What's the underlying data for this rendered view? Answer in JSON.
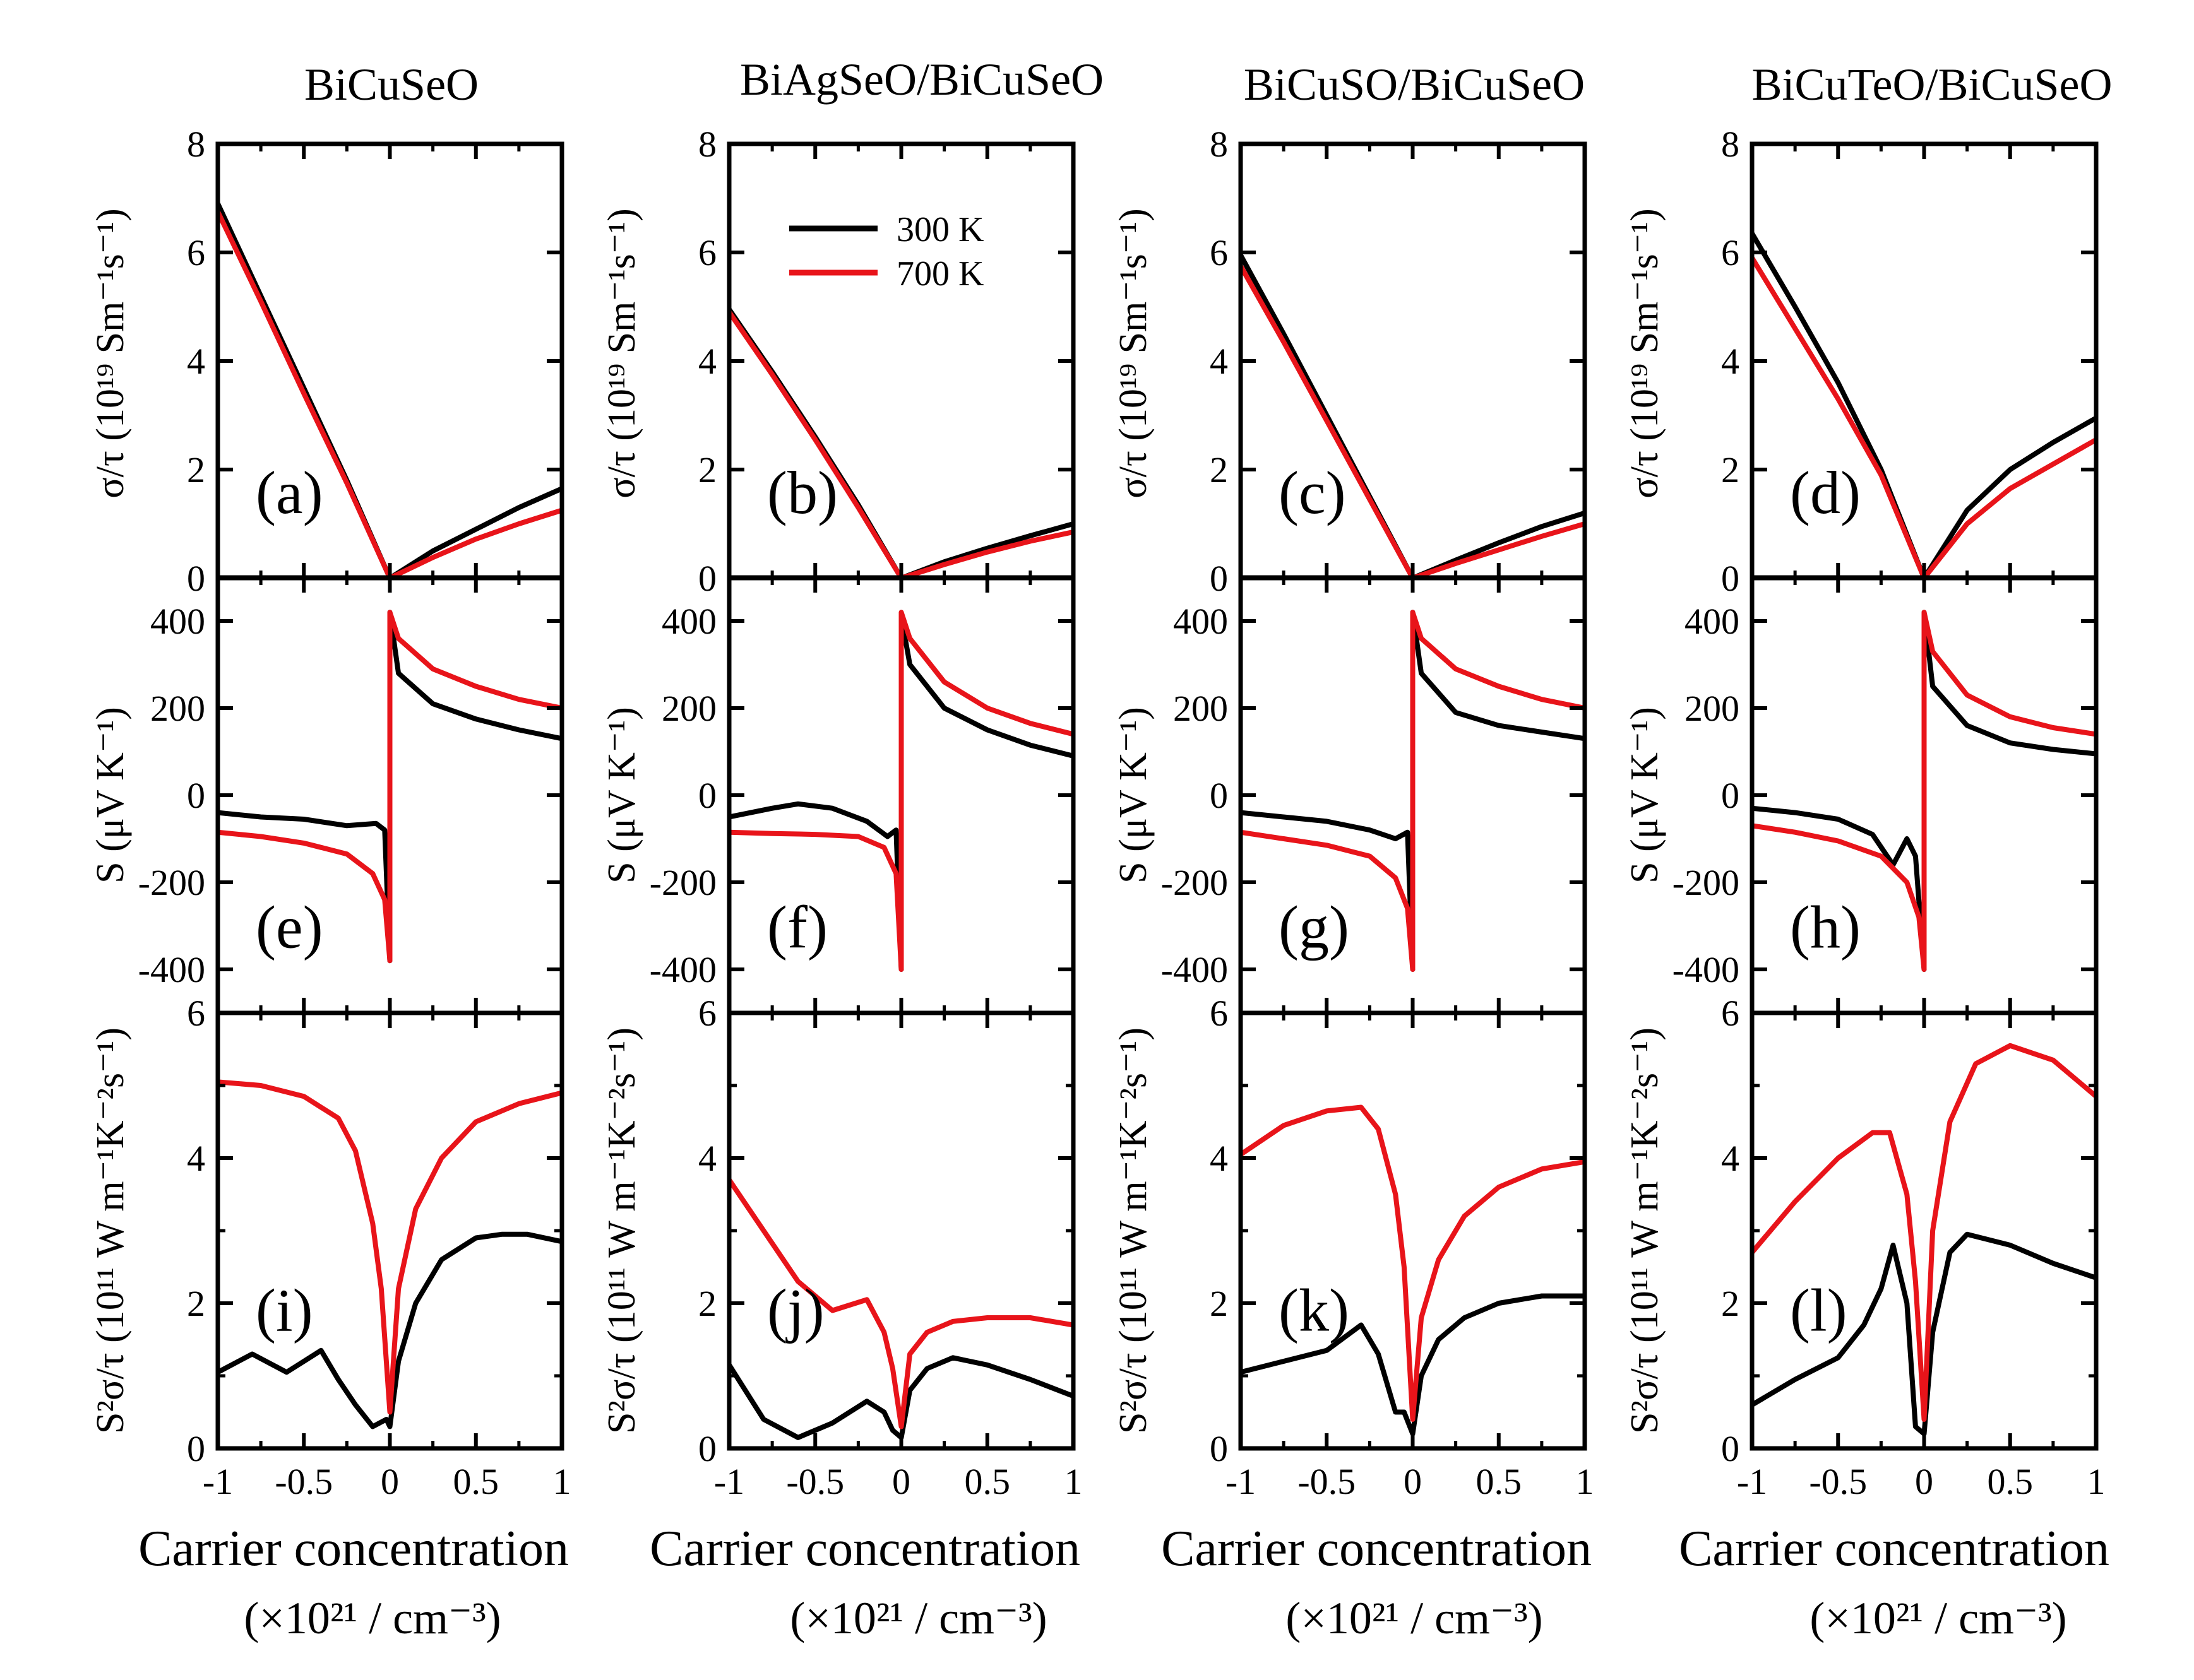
{
  "figure": {
    "columns": [
      {
        "title": "BiCuSeO",
        "letters": [
          "(a)",
          "(e)",
          "(i)"
        ]
      },
      {
        "title": "BiAgSeO/BiCuSeO",
        "letters": [
          "(b)",
          "(f)",
          "(j)"
        ]
      },
      {
        "title": "BiCuSO/BiCuSeO",
        "letters": [
          "(c)",
          "(g)",
          "(k)"
        ]
      },
      {
        "title": "BiCuTeO/BiCuSeO",
        "letters": [
          "(d)",
          "(h)",
          "(l)"
        ]
      }
    ],
    "x_tick_labels": [
      "-1",
      "-0.5",
      "0",
      "0.5",
      "1"
    ],
    "xlabel": "Carrier concentration",
    "xunit": "(×10²¹ / cm⁻³)",
    "ylabels": {
      "sigma": "σ/τ (10¹⁹ Sm⁻¹s⁻¹)",
      "seebeck": "S (μV K⁻¹)",
      "power": "S²σ/τ (10¹¹ W m⁻¹K⁻²s⁻¹)"
    },
    "legend": [
      {
        "label": "300 K",
        "color": "#000000"
      },
      {
        "label": "700 K",
        "color": "#e8141a"
      }
    ]
  },
  "chart_data": {
    "type": "line",
    "x_range": [
      -1,
      1
    ],
    "rows": [
      {
        "quantity": "sigma",
        "ylim": [
          0,
          8
        ],
        "yticks": [
          0,
          2,
          4,
          6,
          8
        ]
      },
      {
        "quantity": "seebeck",
        "ylim": [
          -500,
          500
        ],
        "yticks": [
          -400,
          -200,
          0,
          200,
          400
        ]
      },
      {
        "quantity": "power",
        "ylim": [
          0,
          6
        ],
        "yticks": [
          0,
          2,
          4,
          6
        ]
      }
    ],
    "panels": [
      {
        "row": 0,
        "col": 0,
        "series": [
          {
            "name": "300 K",
            "x": [
              -1,
              -0.75,
              -0.5,
              -0.25,
              0,
              0.25,
              0.5,
              0.75,
              1
            ],
            "y": [
              6.9,
              5.2,
              3.5,
              1.8,
              0,
              0.5,
              0.9,
              1.3,
              1.65
            ]
          },
          {
            "name": "700 K",
            "x": [
              -1,
              -0.75,
              -0.5,
              -0.25,
              0,
              0.25,
              0.5,
              0.75,
              1
            ],
            "y": [
              6.75,
              5.1,
              3.4,
              1.75,
              0,
              0.38,
              0.72,
              1.0,
              1.25
            ]
          }
        ]
      },
      {
        "row": 0,
        "col": 1,
        "series": [
          {
            "name": "300 K",
            "x": [
              -1,
              -0.75,
              -0.5,
              -0.25,
              0,
              0.25,
              0.5,
              0.75,
              1
            ],
            "y": [
              4.95,
              3.8,
              2.6,
              1.35,
              0,
              0.3,
              0.55,
              0.78,
              1.0
            ]
          },
          {
            "name": "700 K",
            "x": [
              -1,
              -0.75,
              -0.5,
              -0.25,
              0,
              0.25,
              0.5,
              0.75,
              1
            ],
            "y": [
              4.9,
              3.75,
              2.55,
              1.3,
              0,
              0.25,
              0.48,
              0.68,
              0.85
            ]
          }
        ]
      },
      {
        "row": 0,
        "col": 2,
        "series": [
          {
            "name": "300 K",
            "x": [
              -1,
              -0.75,
              -0.5,
              -0.25,
              0,
              0.25,
              0.5,
              0.75,
              1
            ],
            "y": [
              5.95,
              4.5,
              3.0,
              1.5,
              0,
              0.33,
              0.65,
              0.95,
              1.2
            ]
          },
          {
            "name": "700 K",
            "x": [
              -1,
              -0.75,
              -0.5,
              -0.25,
              0,
              0.25,
              0.5,
              0.75,
              1
            ],
            "y": [
              5.75,
              4.35,
              2.9,
              1.45,
              0,
              0.27,
              0.52,
              0.77,
              1.0
            ]
          }
        ]
      },
      {
        "row": 0,
        "col": 3,
        "series": [
          {
            "name": "300 K",
            "x": [
              -1,
              -0.75,
              -0.5,
              -0.25,
              0,
              0.25,
              0.5,
              0.75,
              1
            ],
            "y": [
              6.35,
              5.0,
              3.6,
              2.0,
              0,
              1.25,
              2.0,
              2.5,
              2.95
            ]
          },
          {
            "name": "700 K",
            "x": [
              -1,
              -0.75,
              -0.5,
              -0.25,
              0,
              0.25,
              0.5,
              0.75,
              1
            ],
            "y": [
              5.9,
              4.6,
              3.3,
              1.9,
              0,
              1.0,
              1.65,
              2.1,
              2.55
            ]
          }
        ]
      },
      {
        "row": 1,
        "col": 0,
        "series": [
          {
            "name": "300 K",
            "x": [
              -1,
              -0.75,
              -0.5,
              -0.25,
              -0.08,
              -0.03,
              0,
              0,
              0.05,
              0.25,
              0.5,
              0.75,
              1
            ],
            "y": [
              -40,
              -50,
              -55,
              -70,
              -65,
              -80,
              -380,
              420,
              280,
              210,
              175,
              150,
              130
            ]
          },
          {
            "name": "700 K",
            "x": [
              -1,
              -0.75,
              -0.5,
              -0.25,
              -0.1,
              -0.03,
              0,
              0,
              0.05,
              0.25,
              0.5,
              0.75,
              1
            ],
            "y": [
              -85,
              -95,
              -110,
              -135,
              -180,
              -240,
              -380,
              420,
              360,
              290,
              250,
              220,
              200
            ]
          }
        ]
      },
      {
        "row": 1,
        "col": 1,
        "series": [
          {
            "name": "300 K",
            "x": [
              -1,
              -0.75,
              -0.6,
              -0.4,
              -0.2,
              -0.08,
              -0.03,
              0,
              0,
              0.05,
              0.25,
              0.5,
              0.75,
              1
            ],
            "y": [
              -50,
              -30,
              -20,
              -30,
              -60,
              -95,
              -80,
              -400,
              410,
              300,
              200,
              150,
              115,
              90
            ]
          },
          {
            "name": "700 K",
            "x": [
              -1,
              -0.75,
              -0.5,
              -0.25,
              -0.1,
              -0.03,
              0,
              0,
              0.05,
              0.25,
              0.5,
              0.75,
              1
            ],
            "y": [
              -85,
              -88,
              -90,
              -95,
              -120,
              -180,
              -400,
              420,
              360,
              260,
              200,
              165,
              140
            ]
          }
        ]
      },
      {
        "row": 1,
        "col": 2,
        "series": [
          {
            "name": "300 K",
            "x": [
              -1,
              -0.75,
              -0.5,
              -0.25,
              -0.1,
              -0.03,
              0,
              0,
              0.05,
              0.25,
              0.5,
              0.75,
              1
            ],
            "y": [
              -40,
              -50,
              -60,
              -80,
              -100,
              -85,
              -400,
              420,
              280,
              190,
              160,
              145,
              130
            ]
          },
          {
            "name": "700 K",
            "x": [
              -1,
              -0.75,
              -0.5,
              -0.25,
              -0.1,
              -0.03,
              0,
              0,
              0.05,
              0.25,
              0.5,
              0.75,
              1
            ],
            "y": [
              -85,
              -100,
              -115,
              -140,
              -190,
              -260,
              -400,
              420,
              360,
              290,
              250,
              220,
              200
            ]
          }
        ]
      },
      {
        "row": 1,
        "col": 3,
        "series": [
          {
            "name": "300 K",
            "x": [
              -1,
              -0.75,
              -0.5,
              -0.3,
              -0.18,
              -0.1,
              -0.05,
              0,
              0,
              0.05,
              0.25,
              0.5,
              0.75,
              1
            ],
            "y": [
              -30,
              -40,
              -55,
              -90,
              -160,
              -100,
              -140,
              -400,
              420,
              250,
              160,
              120,
              105,
              95
            ]
          },
          {
            "name": "700 K",
            "x": [
              -1,
              -0.75,
              -0.5,
              -0.25,
              -0.1,
              -0.03,
              0,
              0,
              0.05,
              0.25,
              0.5,
              0.75,
              1
            ],
            "y": [
              -70,
              -85,
              -105,
              -140,
              -200,
              -280,
              -400,
              420,
              330,
              230,
              180,
              155,
              140
            ]
          }
        ]
      },
      {
        "row": 2,
        "col": 0,
        "series": [
          {
            "name": "300 K",
            "x": [
              -1,
              -0.8,
              -0.6,
              -0.4,
              -0.3,
              -0.2,
              -0.1,
              -0.02,
              0,
              0.05,
              0.15,
              0.3,
              0.5,
              0.65,
              0.8,
              1
            ],
            "y": [
              1.05,
              1.3,
              1.05,
              1.35,
              0.95,
              0.6,
              0.3,
              0.4,
              0.3,
              1.2,
              2.0,
              2.6,
              2.9,
              2.95,
              2.95,
              2.85
            ]
          },
          {
            "name": "700 K",
            "x": [
              -1,
              -0.75,
              -0.5,
              -0.3,
              -0.2,
              -0.1,
              -0.05,
              0,
              0.05,
              0.15,
              0.3,
              0.5,
              0.75,
              1
            ],
            "y": [
              5.05,
              5.0,
              4.85,
              4.55,
              4.1,
              3.1,
              2.2,
              0.5,
              2.2,
              3.3,
              4.0,
              4.5,
              4.75,
              4.9
            ]
          }
        ]
      },
      {
        "row": 2,
        "col": 1,
        "series": [
          {
            "name": "300 K",
            "x": [
              -1,
              -0.8,
              -0.6,
              -0.4,
              -0.2,
              -0.1,
              -0.05,
              0,
              0.05,
              0.15,
              0.3,
              0.5,
              0.75,
              1
            ],
            "y": [
              1.15,
              0.4,
              0.15,
              0.35,
              0.65,
              0.5,
              0.25,
              0.15,
              0.8,
              1.1,
              1.25,
              1.15,
              0.95,
              0.72
            ]
          },
          {
            "name": "700 K",
            "x": [
              -1,
              -0.8,
              -0.6,
              -0.4,
              -0.2,
              -0.1,
              -0.05,
              0,
              0.05,
              0.15,
              0.3,
              0.5,
              0.75,
              1
            ],
            "y": [
              3.7,
              3.0,
              2.3,
              1.9,
              2.05,
              1.6,
              1.1,
              0.3,
              1.3,
              1.6,
              1.75,
              1.8,
              1.8,
              1.7
            ]
          }
        ]
      },
      {
        "row": 2,
        "col": 2,
        "series": [
          {
            "name": "300 K",
            "x": [
              -1,
              -0.75,
              -0.5,
              -0.3,
              -0.2,
              -0.1,
              -0.05,
              0,
              0.05,
              0.15,
              0.3,
              0.5,
              0.75,
              1
            ],
            "y": [
              1.05,
              1.2,
              1.35,
              1.7,
              1.3,
              0.5,
              0.5,
              0.2,
              1.0,
              1.5,
              1.8,
              2.0,
              2.1,
              2.1
            ]
          },
          {
            "name": "700 K",
            "x": [
              -1,
              -0.75,
              -0.5,
              -0.3,
              -0.2,
              -0.1,
              -0.05,
              0,
              0.05,
              0.15,
              0.3,
              0.5,
              0.75,
              1
            ],
            "y": [
              4.05,
              4.45,
              4.65,
              4.7,
              4.4,
              3.5,
              2.5,
              0.4,
              1.8,
              2.6,
              3.2,
              3.6,
              3.85,
              3.95
            ]
          }
        ]
      },
      {
        "row": 2,
        "col": 3,
        "series": [
          {
            "name": "300 K",
            "x": [
              -1,
              -0.75,
              -0.5,
              -0.35,
              -0.25,
              -0.18,
              -0.1,
              -0.05,
              0,
              0.05,
              0.15,
              0.25,
              0.5,
              0.75,
              1
            ],
            "y": [
              0.6,
              0.95,
              1.25,
              1.7,
              2.2,
              2.8,
              2.0,
              0.3,
              0.2,
              1.6,
              2.7,
              2.95,
              2.8,
              2.55,
              2.35
            ]
          },
          {
            "name": "700 K",
            "x": [
              -1,
              -0.75,
              -0.5,
              -0.3,
              -0.2,
              -0.1,
              -0.05,
              0,
              0.05,
              0.15,
              0.3,
              0.5,
              0.75,
              1
            ],
            "y": [
              2.7,
              3.4,
              4.0,
              4.35,
              4.35,
              3.5,
              2.3,
              0.4,
              3.0,
              4.5,
              5.3,
              5.55,
              5.35,
              4.85
            ]
          }
        ]
      }
    ]
  }
}
